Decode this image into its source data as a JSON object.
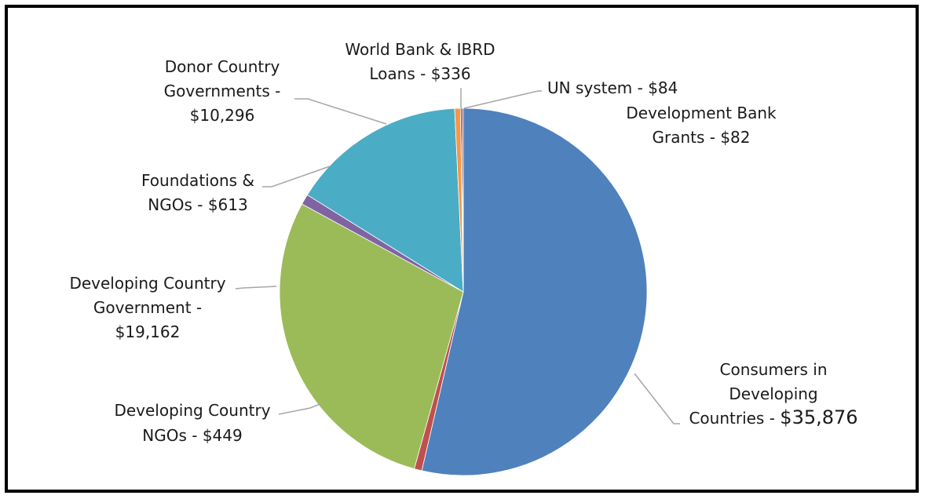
{
  "chart_data": {
    "type": "pie",
    "title": "",
    "start_angle_deg": 0,
    "direction": "clockwise",
    "slices": [
      {
        "label": "Consumers in Developing Countries",
        "value": 35876,
        "value_text": "$35,876",
        "color": "#4F81BD",
        "label_lines": [
          "Consumers in",
          "Developing",
          "Countries - "
        ],
        "label_value_line": "$35,876"
      },
      {
        "label": "Developing Country NGOs",
        "value": 449,
        "value_text": "$449",
        "color": "#C0504D",
        "label_lines": [
          "Developing Country",
          "NGOs - $449"
        ]
      },
      {
        "label": "Developing Country Government",
        "value": 19162,
        "value_text": "$19,162",
        "color": "#9BBB59",
        "label_lines": [
          "Developing Country",
          "Government -",
          "$19,162"
        ]
      },
      {
        "label": "Foundations & NGOs",
        "value": 613,
        "value_text": "$613",
        "color": "#8064A2",
        "label_lines": [
          "Foundations &",
          "NGOs - $613"
        ]
      },
      {
        "label": "Donor Country Governments",
        "value": 10296,
        "value_text": "$10,296",
        "color": "#4BACC6",
        "label_lines": [
          "Donor Country",
          "Governments -",
          "$10,296"
        ]
      },
      {
        "label": "World Bank & IBRD Loans",
        "value": 336,
        "value_text": "$336",
        "color": "#F79646",
        "label_lines": [
          "World Bank & IBRD",
          "Loans - $336"
        ]
      },
      {
        "label": "UN system",
        "value": 84,
        "value_text": "$84",
        "color": "#2C4D75",
        "label_lines": [
          "UN system - $84"
        ]
      },
      {
        "label": "Development Bank Grants",
        "value": 82,
        "value_text": "$82",
        "color": "#772C2A",
        "label_lines": [
          "Development Bank",
          "Grants - $82"
        ]
      }
    ]
  }
}
